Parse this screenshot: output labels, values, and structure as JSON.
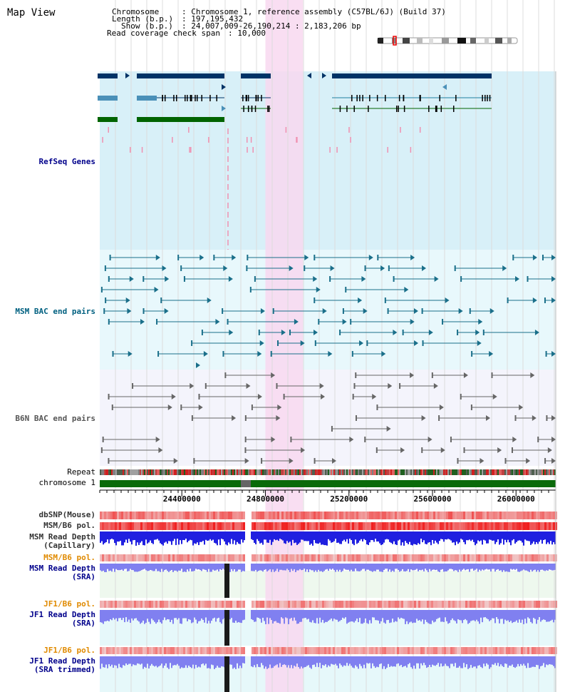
{
  "page_title": "Map View",
  "info": {
    "chromosome_key": "Chromosome",
    "chromosome_value": ": Chromosome 1, reference assembly (C57BL/6J) (Build 37)",
    "length_key": "Length (b.p.)",
    "length_value": ": 197,195,432",
    "show_key": "Show (b.p.)",
    "show_value": ": 24,007,009-26,190,214 : 2,183,206 bp",
    "coverage_key": "Read coverage check span",
    "coverage_value": ": 10,000"
  },
  "tracks": {
    "refseq": {
      "label": "RefSeq Genes",
      "color": "#00008b"
    },
    "msm_bac": {
      "label": "MSM BAC end pairs",
      "color": "#006080"
    },
    "b6n_bac": {
      "label": "B6N BAC end pairs",
      "color": "#555555"
    },
    "repeat": {
      "label": "Repeat"
    },
    "chromosome": {
      "label": "chromosome 1",
      "color": "#006400"
    },
    "dbsnp": {
      "label": "dbSNP(Mouse)"
    },
    "msm_b6_pol_1": {
      "label": "MSM/B6 pol."
    },
    "msm_read_depth_cap": {
      "label1": "MSM Read Depth",
      "label2": "(Capillary)"
    },
    "msm_b6_pol_2": {
      "label": "MSM/B6 pol.",
      "color": "#e08a00"
    },
    "msm_read_depth_sra": {
      "label1": "MSM Read Depth",
      "label2": "(SRA)",
      "color": "#00008b"
    },
    "jf1_b6_pol_1": {
      "label": "JF1/B6 pol.",
      "color": "#e08a00"
    },
    "jf1_read_depth_sra": {
      "label1": "JF1 Read Depth",
      "label2": "(SRA)",
      "color": "#00008b"
    },
    "jf1_b6_pol_2": {
      "label": "JF1/B6 pol.",
      "color": "#e08a00"
    },
    "jf1_read_depth_trim": {
      "label1": "JF1 Read Depth",
      "label2": "(SRA trimmed)",
      "color": "#00008b"
    }
  },
  "axis": {
    "start": 24007009,
    "end": 26190214,
    "ticks": [
      "24400000",
      "24800000",
      "25200000",
      "25600000",
      "26000000"
    ],
    "tick_values": [
      24400000,
      24800000,
      25200000,
      25600000,
      26000000
    ]
  },
  "highlight_region": {
    "start": 24800000,
    "end": 24980000
  },
  "colors": {
    "refseq_bg": "#d8f0f8",
    "msm_bg": "#e8f8fc",
    "b6n_bg": "#f4f4fc",
    "highlight": "#f8d8f0",
    "gene_dark": "#003366",
    "gene_light": "#4a90b8",
    "gene_green": "#006400",
    "depth_blue": "#2020e0",
    "depth_light": "#8080f0"
  }
}
